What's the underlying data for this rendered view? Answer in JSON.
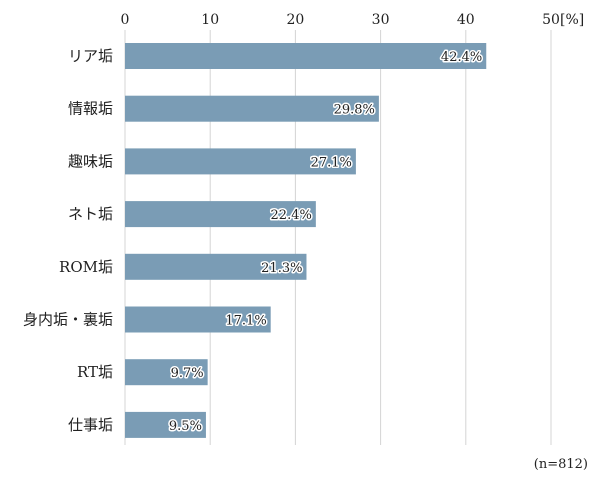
{
  "chart_data": {
    "type": "bar",
    "orientation": "horizontal",
    "categories": [
      "リア垢",
      "情報垢",
      "趣味垢",
      "ネト垢",
      "ROM垢",
      "身内垢・裏垢",
      "RT垢",
      "仕事垢"
    ],
    "values": [
      42.4,
      29.8,
      27.1,
      22.4,
      21.3,
      17.1,
      9.7,
      9.5
    ],
    "data_labels": [
      "42.4%",
      "29.8%",
      "27.1%",
      "22.4%",
      "21.3%",
      "17.1%",
      "9.7%",
      "9.5%"
    ],
    "xlim": [
      0,
      50
    ],
    "x_ticks": [
      0,
      10,
      20,
      30,
      40,
      50
    ],
    "x_tick_labels": [
      "0",
      "10",
      "20",
      "30",
      "40",
      "50"
    ],
    "unit_label": "[%]",
    "note": "(n=812)",
    "grid": true,
    "bar_color": "#7a9cb5",
    "grid_color": "#d4d4d4"
  }
}
